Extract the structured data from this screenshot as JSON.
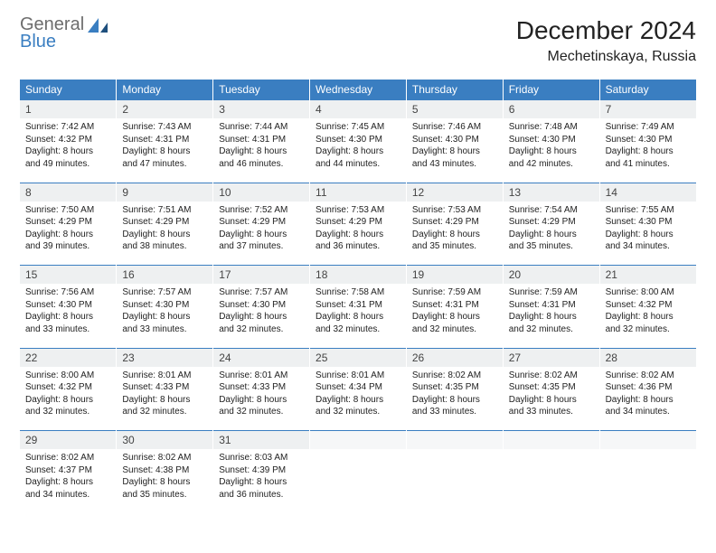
{
  "logo": {
    "text_general": "General",
    "text_blue": "Blue"
  },
  "header": {
    "month_title": "December 2024",
    "location": "Mechetinskaya, Russia"
  },
  "colors": {
    "header_bg": "#3a7ec1",
    "header_text": "#ffffff",
    "daynum_bg": "#eef0f1",
    "daynum_border": "#3a7ec1",
    "logo_gray": "#6d6d6d",
    "logo_blue": "#3a7ec1",
    "body_text": "#222222",
    "page_bg": "#ffffff"
  },
  "typography": {
    "month_title_fontsize": 28,
    "location_fontsize": 16,
    "weekday_fontsize": 12,
    "daynum_fontsize": 12,
    "detail_fontsize": 10
  },
  "weekdays": [
    "Sunday",
    "Monday",
    "Tuesday",
    "Wednesday",
    "Thursday",
    "Friday",
    "Saturday"
  ],
  "weeks": [
    [
      {
        "n": "1",
        "sunrise": "Sunrise: 7:42 AM",
        "sunset": "Sunset: 4:32 PM",
        "daylight": "Daylight: 8 hours and 49 minutes."
      },
      {
        "n": "2",
        "sunrise": "Sunrise: 7:43 AM",
        "sunset": "Sunset: 4:31 PM",
        "daylight": "Daylight: 8 hours and 47 minutes."
      },
      {
        "n": "3",
        "sunrise": "Sunrise: 7:44 AM",
        "sunset": "Sunset: 4:31 PM",
        "daylight": "Daylight: 8 hours and 46 minutes."
      },
      {
        "n": "4",
        "sunrise": "Sunrise: 7:45 AM",
        "sunset": "Sunset: 4:30 PM",
        "daylight": "Daylight: 8 hours and 44 minutes."
      },
      {
        "n": "5",
        "sunrise": "Sunrise: 7:46 AM",
        "sunset": "Sunset: 4:30 PM",
        "daylight": "Daylight: 8 hours and 43 minutes."
      },
      {
        "n": "6",
        "sunrise": "Sunrise: 7:48 AM",
        "sunset": "Sunset: 4:30 PM",
        "daylight": "Daylight: 8 hours and 42 minutes."
      },
      {
        "n": "7",
        "sunrise": "Sunrise: 7:49 AM",
        "sunset": "Sunset: 4:30 PM",
        "daylight": "Daylight: 8 hours and 41 minutes."
      }
    ],
    [
      {
        "n": "8",
        "sunrise": "Sunrise: 7:50 AM",
        "sunset": "Sunset: 4:29 PM",
        "daylight": "Daylight: 8 hours and 39 minutes."
      },
      {
        "n": "9",
        "sunrise": "Sunrise: 7:51 AM",
        "sunset": "Sunset: 4:29 PM",
        "daylight": "Daylight: 8 hours and 38 minutes."
      },
      {
        "n": "10",
        "sunrise": "Sunrise: 7:52 AM",
        "sunset": "Sunset: 4:29 PM",
        "daylight": "Daylight: 8 hours and 37 minutes."
      },
      {
        "n": "11",
        "sunrise": "Sunrise: 7:53 AM",
        "sunset": "Sunset: 4:29 PM",
        "daylight": "Daylight: 8 hours and 36 minutes."
      },
      {
        "n": "12",
        "sunrise": "Sunrise: 7:53 AM",
        "sunset": "Sunset: 4:29 PM",
        "daylight": "Daylight: 8 hours and 35 minutes."
      },
      {
        "n": "13",
        "sunrise": "Sunrise: 7:54 AM",
        "sunset": "Sunset: 4:29 PM",
        "daylight": "Daylight: 8 hours and 35 minutes."
      },
      {
        "n": "14",
        "sunrise": "Sunrise: 7:55 AM",
        "sunset": "Sunset: 4:30 PM",
        "daylight": "Daylight: 8 hours and 34 minutes."
      }
    ],
    [
      {
        "n": "15",
        "sunrise": "Sunrise: 7:56 AM",
        "sunset": "Sunset: 4:30 PM",
        "daylight": "Daylight: 8 hours and 33 minutes."
      },
      {
        "n": "16",
        "sunrise": "Sunrise: 7:57 AM",
        "sunset": "Sunset: 4:30 PM",
        "daylight": "Daylight: 8 hours and 33 minutes."
      },
      {
        "n": "17",
        "sunrise": "Sunrise: 7:57 AM",
        "sunset": "Sunset: 4:30 PM",
        "daylight": "Daylight: 8 hours and 32 minutes."
      },
      {
        "n": "18",
        "sunrise": "Sunrise: 7:58 AM",
        "sunset": "Sunset: 4:31 PM",
        "daylight": "Daylight: 8 hours and 32 minutes."
      },
      {
        "n": "19",
        "sunrise": "Sunrise: 7:59 AM",
        "sunset": "Sunset: 4:31 PM",
        "daylight": "Daylight: 8 hours and 32 minutes."
      },
      {
        "n": "20",
        "sunrise": "Sunrise: 7:59 AM",
        "sunset": "Sunset: 4:31 PM",
        "daylight": "Daylight: 8 hours and 32 minutes."
      },
      {
        "n": "21",
        "sunrise": "Sunrise: 8:00 AM",
        "sunset": "Sunset: 4:32 PM",
        "daylight": "Daylight: 8 hours and 32 minutes."
      }
    ],
    [
      {
        "n": "22",
        "sunrise": "Sunrise: 8:00 AM",
        "sunset": "Sunset: 4:32 PM",
        "daylight": "Daylight: 8 hours and 32 minutes."
      },
      {
        "n": "23",
        "sunrise": "Sunrise: 8:01 AM",
        "sunset": "Sunset: 4:33 PM",
        "daylight": "Daylight: 8 hours and 32 minutes."
      },
      {
        "n": "24",
        "sunrise": "Sunrise: 8:01 AM",
        "sunset": "Sunset: 4:33 PM",
        "daylight": "Daylight: 8 hours and 32 minutes."
      },
      {
        "n": "25",
        "sunrise": "Sunrise: 8:01 AM",
        "sunset": "Sunset: 4:34 PM",
        "daylight": "Daylight: 8 hours and 32 minutes."
      },
      {
        "n": "26",
        "sunrise": "Sunrise: 8:02 AM",
        "sunset": "Sunset: 4:35 PM",
        "daylight": "Daylight: 8 hours and 33 minutes."
      },
      {
        "n": "27",
        "sunrise": "Sunrise: 8:02 AM",
        "sunset": "Sunset: 4:35 PM",
        "daylight": "Daylight: 8 hours and 33 minutes."
      },
      {
        "n": "28",
        "sunrise": "Sunrise: 8:02 AM",
        "sunset": "Sunset: 4:36 PM",
        "daylight": "Daylight: 8 hours and 34 minutes."
      }
    ],
    [
      {
        "n": "29",
        "sunrise": "Sunrise: 8:02 AM",
        "sunset": "Sunset: 4:37 PM",
        "daylight": "Daylight: 8 hours and 34 minutes."
      },
      {
        "n": "30",
        "sunrise": "Sunrise: 8:02 AM",
        "sunset": "Sunset: 4:38 PM",
        "daylight": "Daylight: 8 hours and 35 minutes."
      },
      {
        "n": "31",
        "sunrise": "Sunrise: 8:03 AM",
        "sunset": "Sunset: 4:39 PM",
        "daylight": "Daylight: 8 hours and 36 minutes."
      },
      null,
      null,
      null,
      null
    ]
  ]
}
